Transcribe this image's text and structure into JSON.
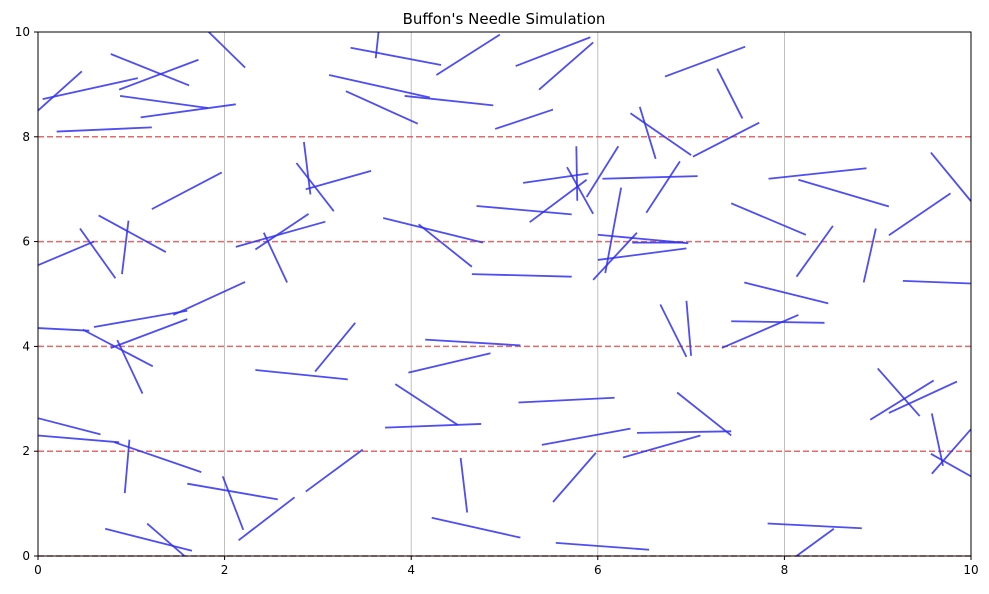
{
  "chart_data": {
    "type": "scatter",
    "title": "Buffon's Needle Simulation",
    "xlabel": "",
    "ylabel": "",
    "xlim": [
      0,
      10
    ],
    "ylim": [
      0,
      10
    ],
    "x_ticks": [
      0,
      2,
      4,
      6,
      8,
      10
    ],
    "y_ticks": [
      0,
      2,
      4,
      6,
      8,
      10
    ],
    "x_tick_labels": [
      "0",
      "2",
      "4",
      "6",
      "8",
      "10"
    ],
    "y_tick_labels": [
      "0",
      "2",
      "4",
      "6",
      "8",
      "10"
    ],
    "vertical_grid_x": [
      2,
      4,
      6,
      8
    ],
    "reference_lines_y": [
      0,
      2,
      4,
      6,
      8
    ],
    "colors": {
      "needle": "#2f2ff0",
      "reference_line": "#e05a5a",
      "grid": "#b0b0b0",
      "axes": "#000000"
    },
    "needles": [
      [
        0.0,
        8.5,
        0.47,
        9.25
      ],
      [
        0.05,
        8.72,
        1.07,
        9.12
      ],
      [
        0.78,
        9.58,
        1.62,
        8.98
      ],
      [
        0.87,
        8.9,
        1.72,
        9.47
      ],
      [
        0.88,
        8.78,
        1.82,
        8.55
      ],
      [
        1.1,
        8.37,
        2.12,
        8.62
      ],
      [
        0.2,
        8.1,
        1.22,
        8.18
      ],
      [
        1.83,
        10.0,
        2.22,
        9.32
      ],
      [
        3.12,
        9.18,
        4.2,
        8.75
      ],
      [
        3.35,
        9.7,
        4.32,
        9.37
      ],
      [
        3.62,
        9.5,
        3.65,
        10.0
      ],
      [
        3.3,
        8.87,
        4.07,
        8.25
      ],
      [
        3.93,
        8.78,
        4.88,
        8.6
      ],
      [
        4.27,
        9.18,
        4.95,
        9.95
      ],
      [
        4.9,
        8.15,
        5.52,
        8.52
      ],
      [
        5.12,
        9.35,
        5.92,
        9.9
      ],
      [
        5.37,
        8.9,
        5.95,
        9.8
      ],
      [
        5.2,
        7.12,
        5.9,
        7.3
      ],
      [
        6.72,
        9.15,
        7.58,
        9.72
      ],
      [
        7.28,
        9.3,
        7.55,
        8.35
      ],
      [
        6.35,
        8.45,
        7.0,
        7.65
      ],
      [
        6.45,
        8.57,
        6.62,
        7.58
      ],
      [
        7.02,
        7.62,
        7.73,
        8.27
      ],
      [
        2.12,
        5.9,
        3.08,
        6.38
      ],
      [
        2.85,
        7.9,
        2.92,
        6.9
      ],
      [
        2.87,
        7.0,
        3.57,
        7.35
      ],
      [
        2.77,
        7.5,
        3.17,
        6.58
      ],
      [
        1.22,
        6.62,
        1.97,
        7.32
      ],
      [
        2.33,
        5.85,
        2.9,
        6.53
      ],
      [
        2.42,
        6.17,
        2.67,
        5.22
      ],
      [
        0.0,
        5.55,
        0.6,
        6.0
      ],
      [
        0.45,
        6.25,
        0.83,
        5.3
      ],
      [
        0.65,
        6.5,
        1.37,
        5.8
      ],
      [
        0.9,
        5.38,
        0.97,
        6.4
      ],
      [
        3.7,
        6.45,
        4.77,
        5.98
      ],
      [
        4.08,
        6.33,
        4.65,
        5.52
      ],
      [
        4.7,
        6.68,
        5.72,
        6.52
      ],
      [
        5.27,
        6.37,
        5.88,
        7.18
      ],
      [
        5.67,
        7.42,
        5.95,
        6.53
      ],
      [
        5.77,
        7.82,
        5.78,
        6.78
      ],
      [
        5.88,
        6.85,
        6.22,
        7.82
      ],
      [
        6.05,
        7.2,
        7.07,
        7.25
      ],
      [
        6.52,
        6.55,
        6.88,
        7.53
      ],
      [
        6.37,
        5.98,
        6.93,
        5.98
      ],
      [
        5.95,
        5.27,
        6.42,
        6.17
      ],
      [
        6.08,
        5.4,
        6.25,
        7.03
      ],
      [
        6.0,
        6.13,
        6.97,
        5.97
      ],
      [
        6.0,
        5.65,
        6.95,
        5.87
      ],
      [
        4.65,
        5.38,
        5.72,
        5.33
      ],
      [
        7.43,
        6.73,
        8.23,
        6.13
      ],
      [
        7.83,
        7.2,
        8.88,
        7.4
      ],
      [
        8.15,
        7.18,
        9.12,
        6.67
      ],
      [
        8.13,
        5.33,
        8.52,
        6.3
      ],
      [
        8.85,
        5.22,
        8.98,
        6.25
      ],
      [
        9.12,
        6.12,
        9.78,
        6.92
      ],
      [
        9.57,
        7.7,
        10.0,
        6.77
      ],
      [
        9.27,
        5.25,
        10.0,
        5.2
      ],
      [
        0.0,
        4.35,
        0.55,
        4.3
      ],
      [
        0.48,
        4.32,
        1.23,
        3.62
      ],
      [
        0.6,
        4.37,
        1.6,
        4.68
      ],
      [
        0.85,
        4.12,
        1.12,
        3.1
      ],
      [
        0.78,
        3.97,
        1.6,
        4.52
      ],
      [
        1.45,
        4.6,
        2.22,
        5.23
      ],
      [
        2.33,
        3.55,
        3.32,
        3.37
      ],
      [
        2.97,
        3.52,
        3.4,
        4.45
      ],
      [
        4.15,
        4.13,
        5.17,
        4.02
      ],
      [
        3.97,
        3.5,
        4.85,
        3.87
      ],
      [
        3.83,
        3.28,
        4.5,
        2.5
      ],
      [
        3.72,
        2.45,
        4.75,
        2.52
      ],
      [
        5.15,
        2.93,
        6.18,
        3.02
      ],
      [
        5.4,
        2.12,
        6.35,
        2.43
      ],
      [
        6.27,
        1.88,
        7.1,
        2.3
      ],
      [
        6.42,
        2.35,
        7.43,
        2.38
      ],
      [
        6.85,
        3.12,
        7.43,
        2.3
      ],
      [
        6.67,
        4.8,
        6.95,
        3.8
      ],
      [
        6.95,
        4.87,
        7.0,
        3.82
      ],
      [
        7.33,
        3.97,
        8.15,
        4.6
      ],
      [
        7.43,
        4.48,
        8.43,
        4.45
      ],
      [
        7.57,
        5.22,
        8.47,
        4.82
      ],
      [
        9.0,
        3.58,
        9.45,
        2.67
      ],
      [
        8.92,
        2.6,
        9.6,
        3.35
      ],
      [
        9.12,
        2.73,
        9.85,
        3.33
      ],
      [
        0.0,
        2.63,
        0.67,
        2.32
      ],
      [
        0.0,
        2.3,
        0.87,
        2.17
      ],
      [
        0.82,
        2.17,
        1.75,
        1.6
      ],
      [
        0.93,
        1.2,
        0.98,
        2.22
      ],
      [
        1.6,
        1.38,
        2.57,
        1.08
      ],
      [
        1.98,
        1.52,
        2.2,
        0.5
      ],
      [
        2.15,
        0.3,
        2.75,
        1.12
      ],
      [
        2.87,
        1.23,
        3.48,
        2.03
      ],
      [
        0.72,
        0.52,
        1.65,
        0.1
      ],
      [
        1.17,
        0.62,
        1.57,
        0.0
      ],
      [
        4.53,
        1.87,
        4.6,
        0.83
      ],
      [
        4.22,
        0.73,
        5.17,
        0.35
      ],
      [
        5.52,
        1.03,
        5.98,
        1.97
      ],
      [
        5.55,
        0.25,
        6.55,
        0.12
      ],
      [
        7.82,
        0.62,
        8.83,
        0.53
      ],
      [
        8.13,
        0.0,
        8.53,
        0.52
      ],
      [
        9.58,
        2.72,
        9.7,
        1.72
      ],
      [
        9.58,
        1.57,
        10.0,
        2.42
      ],
      [
        9.57,
        1.95,
        10.0,
        1.52
      ]
    ]
  }
}
